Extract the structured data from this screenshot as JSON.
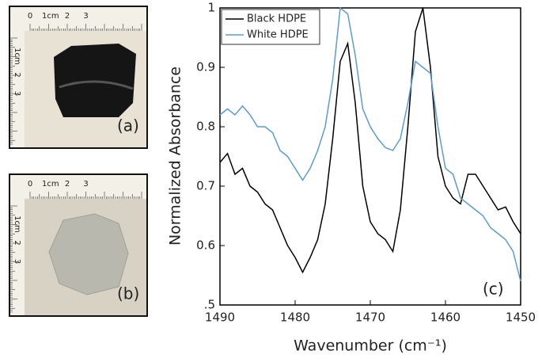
{
  "photos": [
    {
      "panel_label": "(a)",
      "ruler_top": [
        "0",
        "1cm",
        "2",
        "3"
      ],
      "ruler_side": [
        "1cm",
        "2",
        "3"
      ]
    },
    {
      "panel_label": "(b)",
      "ruler_top": [
        "0",
        "1cm",
        "2",
        "3"
      ],
      "ruler_side": [
        "1cm",
        "2",
        "3"
      ]
    }
  ],
  "chart_data": {
    "type": "line",
    "panel_label": "(c)",
    "x_label": "Wavenumber (cm⁻¹)",
    "y_label": "Normalized Absorbance",
    "x": [
      1490,
      1489,
      1488,
      1487,
      1486,
      1485,
      1484,
      1483,
      1482,
      1481,
      1480,
      1479,
      1478,
      1477,
      1476,
      1475,
      1474,
      1473,
      1472,
      1471,
      1470,
      1469,
      1468,
      1467,
      1466,
      1465,
      1464,
      1463,
      1462,
      1461,
      1460,
      1459,
      1458,
      1457,
      1456,
      1455,
      1454,
      1453,
      1452,
      1451,
      1450
    ],
    "series": [
      {
        "name": "Black HDPE",
        "color": "#000000",
        "values": [
          0.74,
          0.755,
          0.72,
          0.73,
          0.7,
          0.69,
          0.67,
          0.66,
          0.63,
          0.6,
          0.58,
          0.555,
          0.58,
          0.61,
          0.67,
          0.78,
          0.91,
          0.94,
          0.84,
          0.7,
          0.64,
          0.62,
          0.61,
          0.59,
          0.66,
          0.8,
          0.96,
          1.0,
          0.9,
          0.75,
          0.7,
          0.68,
          0.67,
          0.72,
          0.72,
          0.7,
          0.68,
          0.66,
          0.665,
          0.64,
          0.62
        ]
      },
      {
        "name": "White HDPE",
        "color": "#5b9bd5",
        "values": [
          0.82,
          0.83,
          0.82,
          0.835,
          0.82,
          0.8,
          0.8,
          0.79,
          0.76,
          0.75,
          0.73,
          0.71,
          0.73,
          0.76,
          0.8,
          0.88,
          1.0,
          0.99,
          0.92,
          0.83,
          0.8,
          0.78,
          0.765,
          0.76,
          0.78,
          0.84,
          0.91,
          0.9,
          0.89,
          0.8,
          0.73,
          0.72,
          0.68,
          0.67,
          0.66,
          0.65,
          0.63,
          0.62,
          0.61,
          0.59,
          0.54
        ]
      }
    ],
    "xlim": [
      1490,
      1450
    ],
    "xticks": [
      1490,
      1480,
      1470,
      1460,
      1450
    ],
    "ylim": [
      0.5,
      1
    ],
    "yticks": [
      {
        "value": 0.5,
        "label": ".5"
      },
      0.6,
      0.7,
      0.8,
      0.9,
      1
    ],
    "legend": "upper-left"
  }
}
